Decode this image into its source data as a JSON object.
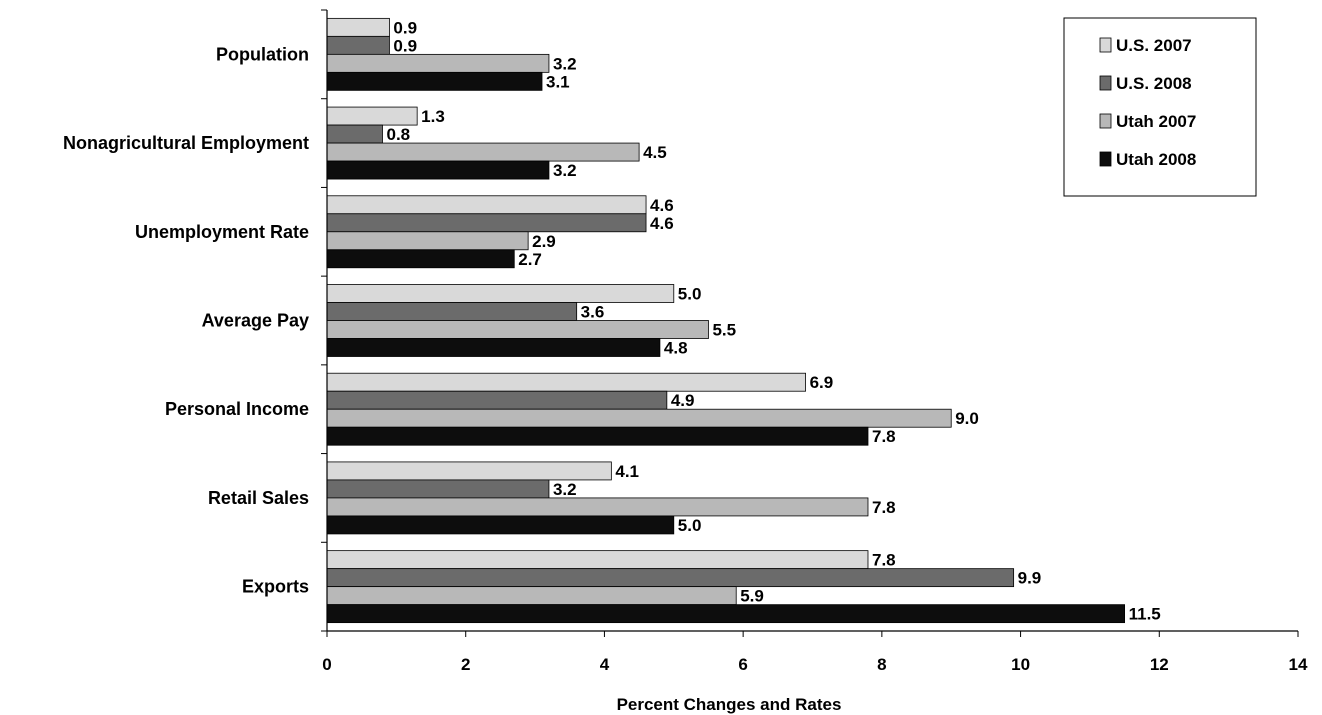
{
  "chart_data": {
    "type": "bar",
    "orientation": "horizontal",
    "categories": [
      "Population",
      "Nonagricultural Employment",
      "Unemployment Rate",
      "Average Pay",
      "Personal Income",
      "Retail Sales",
      "Exports"
    ],
    "series": [
      {
        "name": "U.S. 2007",
        "color": "#d9d9d9",
        "values": [
          0.9,
          1.3,
          4.6,
          5.0,
          6.9,
          4.1,
          7.8
        ]
      },
      {
        "name": "U.S. 2008",
        "color": "#6b6b6b",
        "values": [
          0.9,
          0.8,
          4.6,
          3.6,
          4.9,
          3.2,
          9.9
        ]
      },
      {
        "name": "Utah 2007",
        "color": "#b8b8b8",
        "values": [
          3.2,
          4.5,
          2.9,
          5.5,
          9.0,
          7.8,
          5.9
        ]
      },
      {
        "name": "Utah 2008",
        "color": "#0d0d0d",
        "values": [
          3.1,
          3.2,
          2.7,
          4.8,
          7.8,
          5.0,
          11.5
        ]
      }
    ],
    "value_labels": [
      [
        "0.9",
        "1.3",
        "4.6",
        "5.0",
        "6.9",
        "4.1",
        "7.8"
      ],
      [
        "0.9",
        "0.8",
        "4.6",
        "3.6",
        "4.9",
        "3.2",
        "9.9"
      ],
      [
        "3.2",
        "4.5",
        "2.9",
        "5.5",
        "9.0",
        "7.8",
        "5.9"
      ],
      [
        "3.1",
        "3.2",
        "2.7",
        "4.8",
        "7.8",
        "5.0",
        "11.5"
      ]
    ],
    "xlabel": "Percent Changes and Rates",
    "xlim": [
      0,
      14
    ],
    "xticks": [
      "0",
      "2",
      "4",
      "6",
      "8",
      "10",
      "12",
      "14"
    ],
    "grid": false,
    "legend_position": "top-right"
  }
}
